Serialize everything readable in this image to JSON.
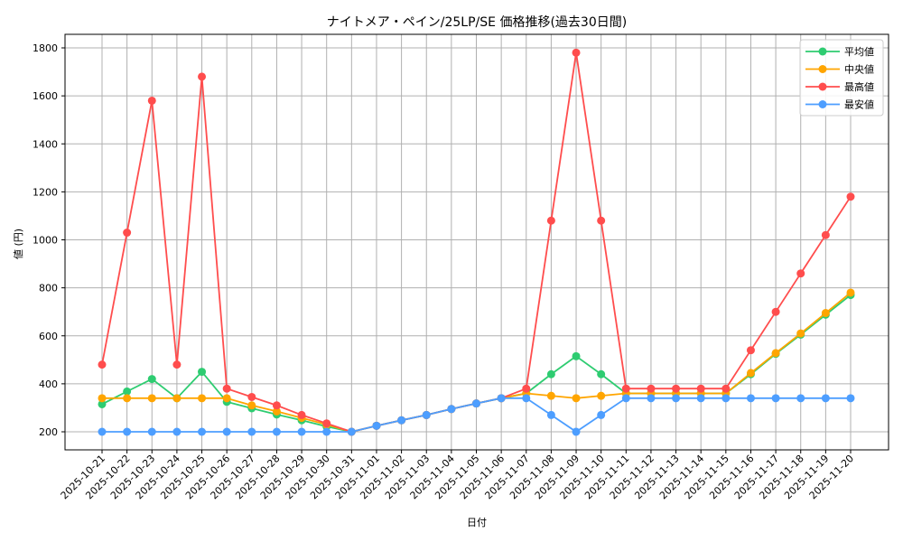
{
  "chart_data": {
    "type": "line",
    "title": "ナイトメア・ペイン/25LP/SE 価格推移(過去30日間)",
    "xlabel": "日付",
    "ylabel": "値 (円)",
    "ylim": [
      125,
      1860
    ],
    "yticks": [
      200,
      400,
      600,
      800,
      1000,
      1200,
      1400,
      1600,
      1800
    ],
    "grid": true,
    "legend_position": "upper right",
    "x": [
      "2025-10-21",
      "2025-10-22",
      "2025-10-23",
      "2025-10-24",
      "2025-10-25",
      "2025-10-26",
      "2025-10-27",
      "2025-10-28",
      "2025-10-29",
      "2025-10-30",
      "2025-10-31",
      "2025-11-01",
      "2025-11-02",
      "2025-11-03",
      "2025-11-04",
      "2025-11-05",
      "2025-11-06",
      "2025-11-07",
      "2025-11-08",
      "2025-11-09",
      "2025-11-10",
      "2025-11-11",
      "2025-11-12",
      "2025-11-13",
      "2025-11-14",
      "2025-11-15",
      "2025-11-16",
      "2025-11-17",
      "2025-11-18",
      "2025-11-19",
      "2025-11-20"
    ],
    "series": [
      {
        "name": "平均値",
        "color": "#2ecc71",
        "values": [
          315,
          368,
          420,
          340,
          450,
          325,
          298,
          272,
          248,
          222,
          200,
          225,
          248,
          270,
          295,
          318,
          340,
          360,
          440,
          515,
          440,
          360,
          360,
          360,
          360,
          360,
          440,
          525,
          605,
          688,
          770
        ]
      },
      {
        "name": "中央値",
        "color": "#ffa500",
        "values": [
          340,
          340,
          340,
          340,
          340,
          340,
          310,
          285,
          258,
          230,
          200,
          225,
          248,
          270,
          295,
          318,
          340,
          360,
          350,
          340,
          350,
          360,
          360,
          360,
          360,
          360,
          445,
          528,
          610,
          695,
          780
        ]
      },
      {
        "name": "最高値",
        "color": "#ff4d4d",
        "values": [
          480,
          1030,
          1580,
          480,
          1680,
          380,
          345,
          310,
          270,
          235,
          200,
          225,
          248,
          270,
          295,
          318,
          340,
          380,
          1080,
          1780,
          1080,
          380,
          380,
          380,
          380,
          380,
          540,
          700,
          860,
          1020,
          1180
        ]
      },
      {
        "name": "最安値",
        "color": "#4d9eff",
        "values": [
          200,
          200,
          200,
          200,
          200,
          200,
          200,
          200,
          200,
          200,
          200,
          225,
          248,
          270,
          295,
          318,
          340,
          340,
          270,
          200,
          270,
          340,
          340,
          340,
          340,
          340,
          340,
          340,
          340,
          340,
          340
        ]
      }
    ]
  }
}
